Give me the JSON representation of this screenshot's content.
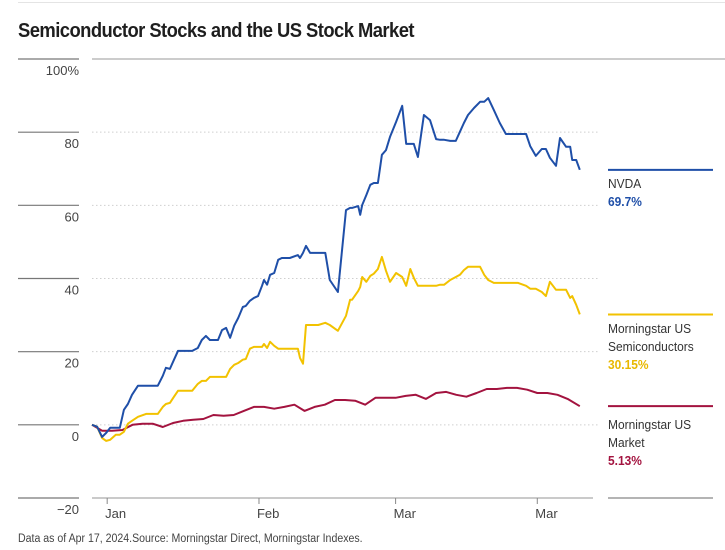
{
  "chart_data": {
    "type": "line",
    "title": "Semiconductor Stocks and the US Stock Market",
    "xlabel": "",
    "ylabel": "",
    "ylim": [
      -20,
      100
    ],
    "yticks": [
      100,
      80,
      60,
      40,
      20,
      0,
      -20
    ],
    "ytick_labels": [
      "100%",
      "80",
      "60",
      "40",
      "20",
      "0",
      "−20"
    ],
    "xticks": [
      {
        "label": "Jan",
        "pos": 0.03
      },
      {
        "label": "Feb",
        "pos": 0.33
      },
      {
        "label": "Mar",
        "pos": 0.6
      },
      {
        "label": "Mar",
        "pos": 0.88
      }
    ],
    "grid": true,
    "legend_placement": "right",
    "series": [
      {
        "name": "NVDA",
        "label": "NVDA",
        "end_value": "69.7%",
        "color": "#1f4fa8",
        "x": [
          0,
          0.01,
          0.02,
          0.028,
          0.036,
          0.047,
          0.055,
          0.063,
          0.071,
          0.079,
          0.091,
          0.107,
          0.13,
          0.14,
          0.146,
          0.154,
          0.162,
          0.17,
          0.178,
          0.198,
          0.209,
          0.217,
          0.225,
          0.233,
          0.249,
          0.257,
          0.265,
          0.273,
          0.281,
          0.289,
          0.298,
          0.304,
          0.312,
          0.32,
          0.328,
          0.336,
          0.34,
          0.346,
          0.352,
          0.36,
          0.368,
          0.375,
          0.391,
          0.407,
          0.411,
          0.417,
          0.423,
          0.431,
          0.447,
          0.461,
          0.47,
          0.486,
          0.502,
          0.51,
          0.514,
          0.526,
          0.53,
          0.534,
          0.542,
          0.55,
          0.557,
          0.565,
          0.573,
          0.581,
          0.589,
          0.601,
          0.613,
          0.621,
          0.629,
          0.636,
          0.644,
          0.656,
          0.668,
          0.68,
          0.688,
          0.696,
          0.708,
          0.719,
          0.727,
          0.735,
          0.743,
          0.755,
          0.767,
          0.775,
          0.783,
          0.794,
          0.806,
          0.818,
          0.83,
          0.842,
          0.858,
          0.866,
          0.877,
          0.889,
          0.897,
          0.905,
          0.917,
          0.925,
          0.937,
          0.945,
          0.949,
          0.957,
          0.964
        ],
        "values": [
          0,
          -0.5,
          -3.3,
          -2.2,
          -0.8,
          -0.8,
          -0.8,
          4.1,
          5.7,
          8.2,
          10.7,
          10.7,
          10.7,
          13.4,
          15.6,
          15.3,
          17.8,
          20.2,
          20.2,
          20.2,
          21.0,
          23.2,
          24.3,
          23.2,
          23.2,
          25.9,
          26.5,
          23.8,
          27.1,
          29.2,
          32.2,
          32.5,
          33.9,
          34.7,
          35.2,
          38.0,
          39.6,
          38.3,
          41.0,
          41.5,
          45.1,
          45.6,
          45.6,
          46.4,
          45.6,
          47.0,
          48.9,
          47.0,
          47.0,
          47.0,
          39.6,
          36.3,
          58.7,
          59.3,
          59.3,
          59.8,
          57.4,
          60.1,
          62.8,
          65.6,
          66.1,
          66.1,
          73.8,
          75.1,
          78.7,
          82.8,
          87.2,
          76.8,
          76.8,
          76.8,
          73.2,
          84.7,
          83.3,
          78.1,
          77.9,
          77.9,
          77.6,
          77.6,
          80.1,
          82.5,
          84.7,
          86.6,
          88.3,
          88.3,
          89.3,
          86.1,
          82.5,
          79.5,
          79.5,
          79.5,
          79.5,
          76.2,
          73.5,
          75.4,
          75.4,
          73.0,
          70.8,
          78.4,
          76.0,
          76.0,
          72.4,
          72.4,
          69.7
        ]
      },
      {
        "name": "Morningstar US Semiconductors",
        "label_lines": [
          "Morningstar US",
          "Semiconductors"
        ],
        "end_value": "30.15%",
        "color": "#f2c200",
        "x": [
          0,
          0.01,
          0.02,
          0.028,
          0.036,
          0.047,
          0.055,
          0.063,
          0.071,
          0.079,
          0.091,
          0.107,
          0.13,
          0.14,
          0.146,
          0.154,
          0.162,
          0.17,
          0.178,
          0.198,
          0.209,
          0.217,
          0.225,
          0.233,
          0.249,
          0.257,
          0.265,
          0.273,
          0.281,
          0.289,
          0.298,
          0.304,
          0.312,
          0.32,
          0.328,
          0.336,
          0.34,
          0.346,
          0.352,
          0.36,
          0.368,
          0.375,
          0.391,
          0.407,
          0.411,
          0.417,
          0.423,
          0.431,
          0.447,
          0.461,
          0.47,
          0.486,
          0.502,
          0.51,
          0.514,
          0.526,
          0.53,
          0.534,
          0.542,
          0.55,
          0.557,
          0.565,
          0.573,
          0.581,
          0.589,
          0.601,
          0.613,
          0.621,
          0.629,
          0.636,
          0.644,
          0.656,
          0.668,
          0.68,
          0.688,
          0.696,
          0.708,
          0.719,
          0.727,
          0.735,
          0.743,
          0.755,
          0.767,
          0.775,
          0.783,
          0.794,
          0.806,
          0.818,
          0.83,
          0.842,
          0.858,
          0.866,
          0.877,
          0.889,
          0.897,
          0.905,
          0.917,
          0.925,
          0.937,
          0.945,
          0.949,
          0.957,
          0.964
        ],
        "values": [
          0,
          -0.5,
          -3.6,
          -4.4,
          -4.1,
          -2.7,
          -2.7,
          -1.9,
          0.3,
          1.1,
          2.2,
          3.0,
          3.0,
          4.9,
          5.7,
          6.0,
          7.7,
          9.3,
          9.3,
          9.3,
          11.2,
          12.0,
          12.0,
          13.1,
          13.1,
          13.1,
          13.1,
          15.3,
          16.4,
          16.9,
          17.8,
          18.0,
          20.8,
          21.3,
          21.3,
          21.3,
          22.1,
          21.0,
          22.7,
          21.6,
          20.8,
          20.8,
          20.8,
          20.8,
          18.3,
          16.7,
          27.3,
          27.3,
          27.3,
          27.9,
          27.3,
          25.7,
          29.8,
          34.2,
          34.2,
          36.6,
          37.7,
          40.4,
          39.1,
          40.7,
          41.3,
          42.6,
          45.9,
          42.1,
          39.1,
          41.5,
          40.4,
          38.0,
          42.6,
          40.2,
          38.0,
          38.0,
          38.0,
          38.0,
          38.3,
          38.3,
          39.6,
          40.4,
          41.0,
          42.3,
          43.2,
          43.2,
          43.2,
          41.0,
          39.6,
          38.8,
          38.8,
          38.8,
          38.8,
          38.8,
          38.0,
          37.2,
          37.2,
          36.3,
          35.2,
          39.1,
          36.9,
          36.9,
          36.9,
          34.7,
          35.2,
          32.8,
          30.2
        ]
      },
      {
        "name": "Morningstar US Market",
        "label_lines": [
          "Morningstar US",
          "Market"
        ],
        "end_value": "5.13%",
        "color": "#a3133f",
        "x": [
          0,
          0.02,
          0.04,
          0.06,
          0.08,
          0.1,
          0.12,
          0.14,
          0.16,
          0.18,
          0.2,
          0.22,
          0.24,
          0.26,
          0.28,
          0.3,
          0.32,
          0.34,
          0.36,
          0.38,
          0.4,
          0.42,
          0.44,
          0.46,
          0.48,
          0.5,
          0.52,
          0.54,
          0.56,
          0.58,
          0.6,
          0.62,
          0.64,
          0.66,
          0.68,
          0.7,
          0.72,
          0.74,
          0.76,
          0.78,
          0.8,
          0.82,
          0.84,
          0.86,
          0.88,
          0.9,
          0.92,
          0.94,
          0.964
        ],
        "values": [
          0,
          -1.6,
          -1.6,
          -1.4,
          0,
          0.3,
          0.3,
          -0.6,
          0.5,
          1.1,
          1.4,
          1.6,
          2.7,
          2.5,
          2.7,
          3.8,
          4.9,
          4.9,
          4.4,
          4.9,
          5.5,
          3.8,
          4.9,
          5.5,
          6.8,
          6.8,
          6.6,
          5.5,
          7.4,
          7.4,
          7.4,
          7.9,
          8.2,
          7.1,
          8.7,
          9.0,
          8.2,
          7.7,
          8.7,
          9.8,
          9.8,
          10.1,
          10.1,
          9.6,
          8.7,
          8.7,
          8.2,
          7.1,
          5.1
        ]
      }
    ]
  },
  "footer": "Data as of Apr 17, 2024.Source: Morningstar Direct, Morningstar Indexes."
}
